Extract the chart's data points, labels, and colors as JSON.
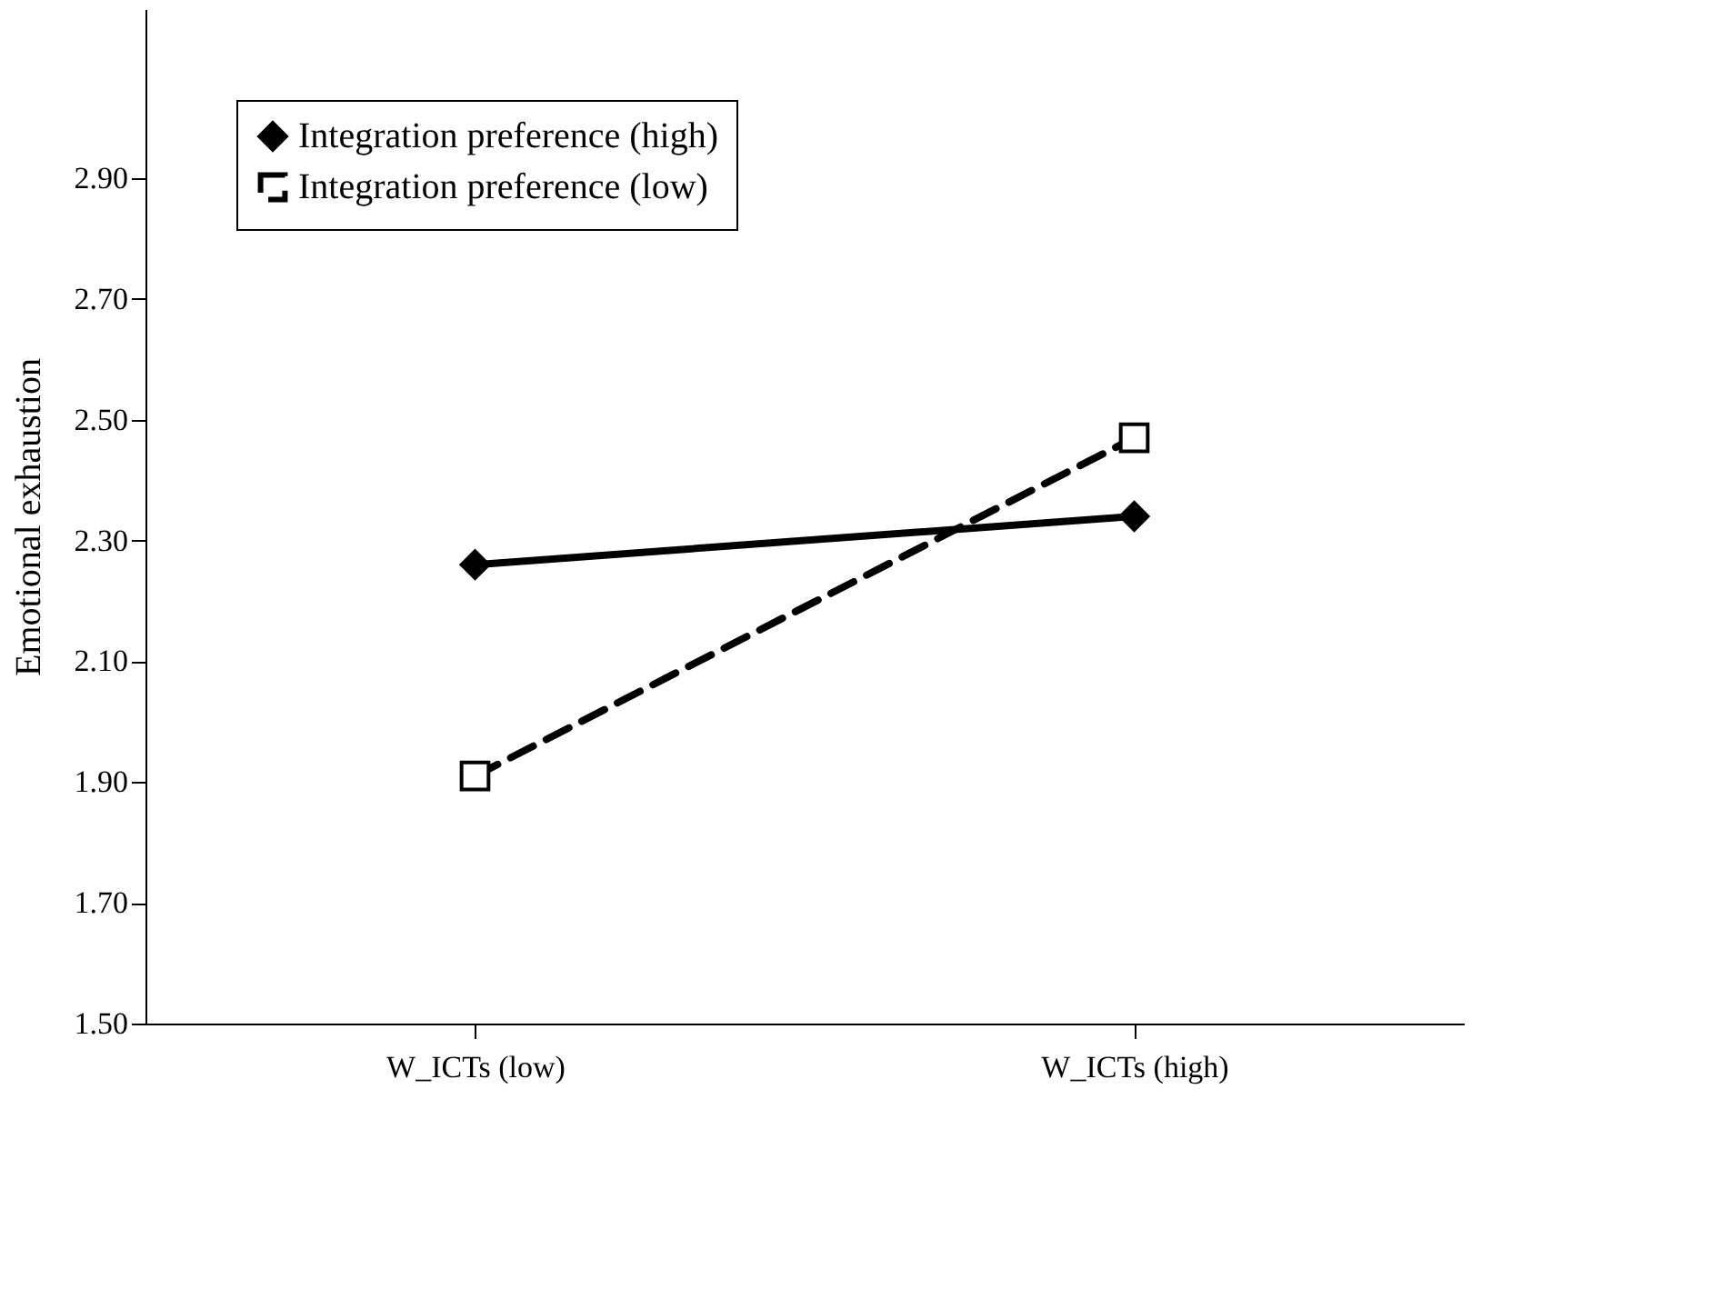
{
  "chart_data": {
    "type": "line",
    "ylabel": "Emotional exhaustion",
    "categories": [
      "W_ICTs (low)",
      "W_ICTs (high)"
    ],
    "series": [
      {
        "name": "Integration preference (high)",
        "color": "#000000",
        "values": [
          2.26,
          2.34
        ],
        "marker": "diamond",
        "line_style": "solid"
      },
      {
        "name": "Integration preference (low)",
        "color": "#000000",
        "values": [
          1.91,
          2.47
        ],
        "marker": "square",
        "line_style": "dashed"
      }
    ],
    "ylim": [
      1.5,
      3.18
    ],
    "yticks": [
      {
        "value": 1.5,
        "label": "1.50"
      },
      {
        "value": 1.7,
        "label": "1.70"
      },
      {
        "value": 1.9,
        "label": "1.90"
      },
      {
        "value": 2.1,
        "label": "2.10"
      },
      {
        "value": 2.3,
        "label": "2.30"
      },
      {
        "value": 2.5,
        "label": "2.50"
      },
      {
        "value": 2.7,
        "label": "2.70"
      },
      {
        "value": 2.9,
        "label": "2.90"
      }
    ],
    "grid": false,
    "legend": "top left"
  }
}
